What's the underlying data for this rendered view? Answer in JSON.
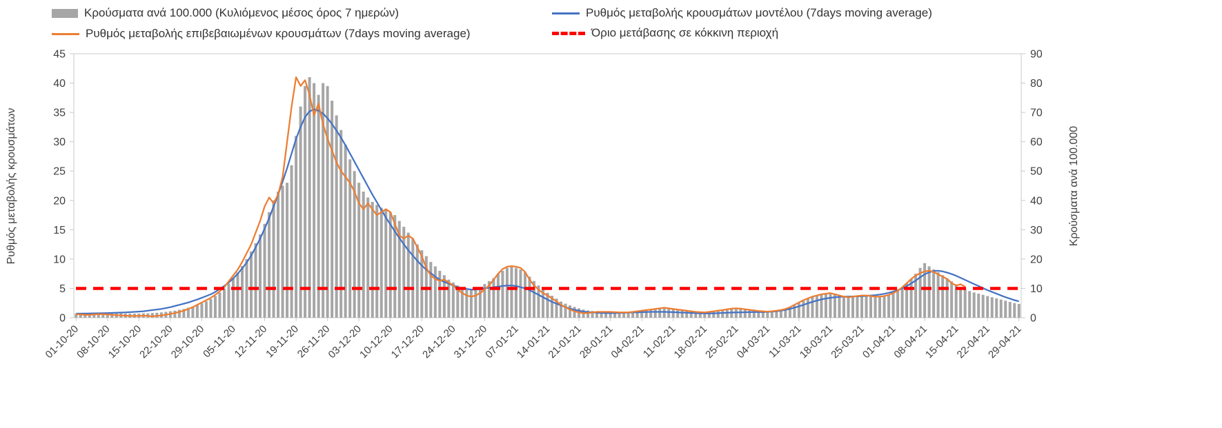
{
  "colors": {
    "axis": "#c9c9c9",
    "bars": "#a6a6a6",
    "model_line": "#4472c4",
    "confirmed_line": "#ed7d31",
    "threshold_line": "#ff0000",
    "text": "#404040"
  },
  "chart_data": {
    "type": "bar",
    "subtype": "combo-bar-line",
    "grid": false,
    "legend_position": "top",
    "axes_titles": {
      "left": "Ρυθμός μεταβολής κρουσμάτων",
      "right": "Κρούσματα ανά 100.000"
    },
    "left_ylim": [
      0,
      45
    ],
    "right_ylim": [
      0,
      90
    ],
    "left_ticks": [
      0,
      5,
      10,
      15,
      20,
      25,
      30,
      35,
      40,
      45
    ],
    "right_ticks": [
      0,
      10,
      20,
      30,
      40,
      50,
      60,
      70,
      80,
      90
    ],
    "n_points": 211,
    "x_tick_every": 7,
    "x_tick_labels": [
      "01-10-20",
      "08-10-20",
      "15-10-20",
      "22-10-20",
      "29-10-20",
      "05-11-20",
      "12-11-20",
      "19-11-20",
      "26-11-20",
      "03-12-20",
      "10-12-20",
      "17-12-20",
      "24-12-20",
      "31-12-20",
      "07-01-21",
      "14-01-21",
      "21-01-21",
      "28-01-21",
      "04-02-21",
      "11-02-21",
      "18-02-21",
      "25-02-21",
      "04-03-21",
      "11-03-21",
      "18-03-21",
      "25-03-21",
      "01-04-21",
      "08-04-21",
      "15-04-21",
      "22-04-21",
      "29-04-21"
    ],
    "threshold": {
      "label": "Όριο μετάβασης σε κόκκινη περιοχή",
      "value": 5,
      "axis": "left",
      "color": "#ff0000",
      "style": "dashed"
    },
    "series": [
      {
        "name": "Κρούσματα ανά 100.000 (Κυλιόμενος μέσος όρος 7 ημερών)",
        "type": "bar",
        "axis": "right",
        "color": "#a6a6a6",
        "values": [
          1.4,
          1.5,
          1.5,
          1.6,
          1.6,
          1.5,
          1.5,
          1.6,
          1.6,
          1.5,
          1.5,
          1.4,
          1.4,
          1.4,
          1.4,
          1.5,
          1.5,
          1.6,
          1.7,
          1.8,
          2,
          2.2,
          2.4,
          2.7,
          3,
          3.4,
          3.8,
          4.3,
          4.9,
          5.6,
          6.4,
          7.4,
          8.6,
          10,
          11.6,
          13.4,
          15.4,
          17.6,
          20,
          22.6,
          25.4,
          28.4,
          32,
          36,
          40,
          43,
          45,
          46,
          52,
          62,
          72,
          79,
          82,
          80,
          76,
          80,
          79,
          74,
          69,
          64,
          59,
          54,
          50,
          46,
          43,
          41,
          39.5,
          38.5,
          37.5,
          37,
          36,
          35,
          33,
          31,
          29,
          27,
          25,
          23,
          21,
          19,
          17.5,
          16,
          14.5,
          13,
          12,
          11,
          10,
          9.5,
          9.5,
          10,
          10.5,
          11.5,
          12.5,
          13.5,
          15,
          16,
          17,
          17.5,
          17,
          16.5,
          15.5,
          14,
          12.5,
          11,
          9.5,
          8.5,
          7.5,
          6.5,
          5.5,
          4.8,
          4.2,
          3.7,
          3.2,
          2.8,
          2.5,
          2.3,
          2.2,
          2.1,
          2.1,
          2.2,
          2.1,
          2,
          2,
          2,
          2.1,
          2.2,
          2.4,
          2.5,
          2.7,
          2.9,
          3.1,
          3.3,
          3.2,
          3,
          2.9,
          2.7,
          2.5,
          2.4,
          2.2,
          2.1,
          2,
          2.1,
          2.3,
          2.5,
          2.7,
          2.9,
          3.1,
          3.2,
          3.1,
          3,
          2.8,
          2.6,
          2.4,
          2.3,
          2.2,
          2.3,
          2.5,
          2.7,
          3,
          3.5,
          4.2,
          5,
          5.8,
          6.5,
          7.1,
          7.6,
          8,
          8.3,
          8.5,
          8.2,
          7.8,
          7.4,
          7.1,
          7.2,
          7.4,
          7.6,
          7.5,
          7.3,
          7.1,
          7.2,
          7.5,
          7.9,
          8.5,
          9.3,
          10.4,
          11.8,
          13.2,
          15,
          17,
          18.6,
          17.5,
          16.5,
          15.5,
          14.5,
          13.4,
          12.4,
          11.4,
          10.5,
          9.7,
          9.1,
          8.6,
          8.2,
          7.8,
          7.4,
          7,
          6.6,
          6.2,
          5.8,
          5.4,
          5,
          4.7
        ]
      },
      {
        "name": "Ρυθμός μεταβολής κρουσμάτων μοντέλου (7days moving average)",
        "type": "line",
        "axis": "left",
        "color": "#4472c4",
        "values": [
          0.7,
          0.7,
          0.72,
          0.73,
          0.75,
          0.76,
          0.78,
          0.8,
          0.82,
          0.85,
          0.88,
          0.9,
          0.95,
          1,
          1.05,
          1.1,
          1.2,
          1.3,
          1.4,
          1.5,
          1.65,
          1.8,
          2,
          2.2,
          2.4,
          2.6,
          2.85,
          3.1,
          3.4,
          3.7,
          4,
          4.4,
          4.9,
          5.4,
          6,
          6.7,
          7.5,
          8.4,
          9.4,
          10.6,
          12,
          13.5,
          15.2,
          17,
          19,
          21,
          23.2,
          25.5,
          28,
          30.5,
          32.5,
          34.2,
          35.2,
          35.5,
          35.3,
          34.8,
          34,
          33,
          31.9,
          30.7,
          29.4,
          28,
          26.6,
          25.2,
          23.8,
          22.4,
          21,
          19.7,
          18.4,
          17.1,
          15.9,
          14.7,
          13.6,
          12.5,
          11.5,
          10.6,
          9.7,
          8.9,
          8.2,
          7.6,
          7,
          6.5,
          6.1,
          5.8,
          5.5,
          5.2,
          5,
          4.9,
          4.8,
          4.8,
          4.9,
          5,
          5.1,
          5.2,
          5.3,
          5.4,
          5.5,
          5.5,
          5.4,
          5.2,
          5,
          4.7,
          4.3,
          3.9,
          3.5,
          3.1,
          2.7,
          2.4,
          2.1,
          1.8,
          1.55,
          1.35,
          1.2,
          1.05,
          0.95,
          0.9,
          0.85,
          0.82,
          0.8,
          0.8,
          0.8,
          0.82,
          0.85,
          0.87,
          0.9,
          0.92,
          0.95,
          0.97,
          1,
          1,
          1,
          1,
          0.98,
          0.95,
          0.92,
          0.88,
          0.85,
          0.82,
          0.78,
          0.75,
          0.73,
          0.73,
          0.75,
          0.78,
          0.82,
          0.85,
          0.88,
          0.9,
          0.92,
          0.94,
          0.95,
          0.96,
          0.97,
          0.98,
          1,
          1.05,
          1.12,
          1.22,
          1.35,
          1.52,
          1.72,
          1.95,
          2.2,
          2.45,
          2.7,
          2.92,
          3.12,
          3.28,
          3.4,
          3.5,
          3.56,
          3.6,
          3.62,
          3.63,
          3.65,
          3.68,
          3.72,
          3.78,
          3.85,
          3.95,
          4.08,
          4.25,
          4.45,
          4.7,
          5,
          5.4,
          5.85,
          6.35,
          6.9,
          7.4,
          7.75,
          7.95,
          8,
          7.9,
          7.7,
          7.45,
          7.15,
          6.8,
          6.45,
          6.1,
          5.75,
          5.4,
          5.05,
          4.7,
          4.4,
          4.1,
          3.8,
          3.5,
          3.25,
          3,
          2.8
        ]
      },
      {
        "name": "Ρυθμός μεταβολής επιβεβαιωμένων κρουσμάτων (7days moving average)",
        "type": "line",
        "axis": "left",
        "color": "#ed7d31",
        "values": [
          0.6,
          0.55,
          0.5,
          0.5,
          0.55,
          0.6,
          0.6,
          0.55,
          0.5,
          0.45,
          0.4,
          0.35,
          0.3,
          0.3,
          0.3,
          0.35,
          0.3,
          0.25,
          0.3,
          0.4,
          0.5,
          0.65,
          0.8,
          1,
          1.2,
          1.5,
          1.8,
          2.2,
          2.6,
          3,
          3.4,
          3.9,
          4.5,
          5.2,
          6.2,
          7.2,
          8.2,
          9.5,
          11,
          12.5,
          14.5,
          16.5,
          19,
          20.5,
          19.5,
          21,
          24,
          30,
          36,
          41,
          39.5,
          40.5,
          38,
          34.5,
          36.5,
          33,
          30.5,
          28.5,
          26.5,
          25,
          24,
          23,
          21.5,
          19.5,
          18.5,
          19.5,
          18.5,
          17.5,
          18,
          18.5,
          18,
          16,
          14,
          13.5,
          14,
          13.5,
          12,
          10.5,
          8.5,
          7.2,
          6.6,
          6.3,
          6.5,
          6,
          5.5,
          4.8,
          4.2,
          3.8,
          3.6,
          3.8,
          4.2,
          4.8,
          5.5,
          6.5,
          7.5,
          8.3,
          8.7,
          8.8,
          8.7,
          8.5,
          7.8,
          6.5,
          5.5,
          4.8,
          4.2,
          3.8,
          3.3,
          2.8,
          2.2,
          1.8,
          1.4,
          1.1,
          0.9,
          0.8,
          0.8,
          0.9,
          1,
          1,
          1,
          1,
          0.95,
          0.9,
          0.9,
          0.9,
          1,
          1.1,
          1.2,
          1.3,
          1.4,
          1.5,
          1.6,
          1.7,
          1.6,
          1.5,
          1.4,
          1.3,
          1.2,
          1.1,
          1,
          0.95,
          0.9,
          1,
          1.1,
          1.2,
          1.3,
          1.45,
          1.55,
          1.6,
          1.55,
          1.45,
          1.35,
          1.25,
          1.15,
          1.1,
          1.05,
          1.1,
          1.2,
          1.3,
          1.5,
          1.8,
          2.2,
          2.6,
          3,
          3.3,
          3.6,
          3.8,
          4,
          4.1,
          4.2,
          4,
          3.8,
          3.6,
          3.5,
          3.6,
          3.7,
          3.8,
          3.8,
          3.7,
          3.6,
          3.6,
          3.7,
          3.9,
          4.2,
          4.6,
          5.2,
          5.9,
          6.6,
          7.2,
          7.6,
          7.9,
          8,
          7.8,
          7.4,
          7,
          6.6,
          5.9,
          5.5,
          5.7,
          5.3,
          null,
          null,
          null,
          null,
          null,
          null,
          null,
          null,
          null,
          null,
          null,
          null
        ]
      }
    ]
  }
}
